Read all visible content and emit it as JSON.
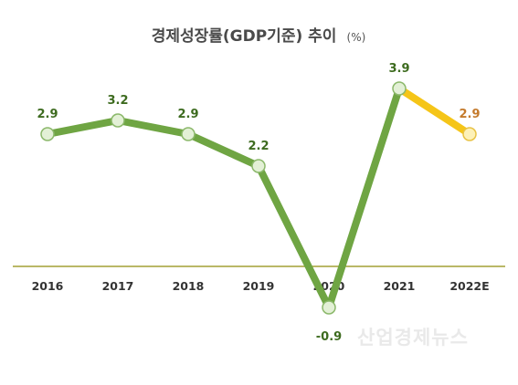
{
  "chart_data": {
    "type": "line",
    "title": "경제성장률(GDP기준) 추이",
    "unit": "(%)",
    "categories": [
      "2016",
      "2017",
      "2018",
      "2019",
      "2020",
      "2021",
      "2022E"
    ],
    "series": [
      {
        "values": [
          2.9,
          3.2,
          2.9,
          2.2,
          -0.9,
          3.9,
          2.9
        ],
        "data_labels": [
          "2.9",
          "3.2",
          "2.9",
          "2.2",
          "-0.9",
          "3.9",
          "2.9"
        ]
      }
    ],
    "estimate_from_index": 5,
    "ylim": [
      -1.2,
      4.3
    ],
    "grid": false,
    "legend": "none",
    "colors": {
      "actual_line": "#6fa543",
      "estimate_line": "#f5c518",
      "actual_marker_fill": "#e3f0d6",
      "actual_marker_stroke": "#8bb86a",
      "estimate_marker_fill": "#fdf1b8",
      "estimate_marker_stroke": "#e8c244",
      "actual_label": "#3d6b1f",
      "estimate_label": "#c47a2c",
      "baseline": "#a3a035"
    }
  },
  "watermark": "산업경제뉴스"
}
